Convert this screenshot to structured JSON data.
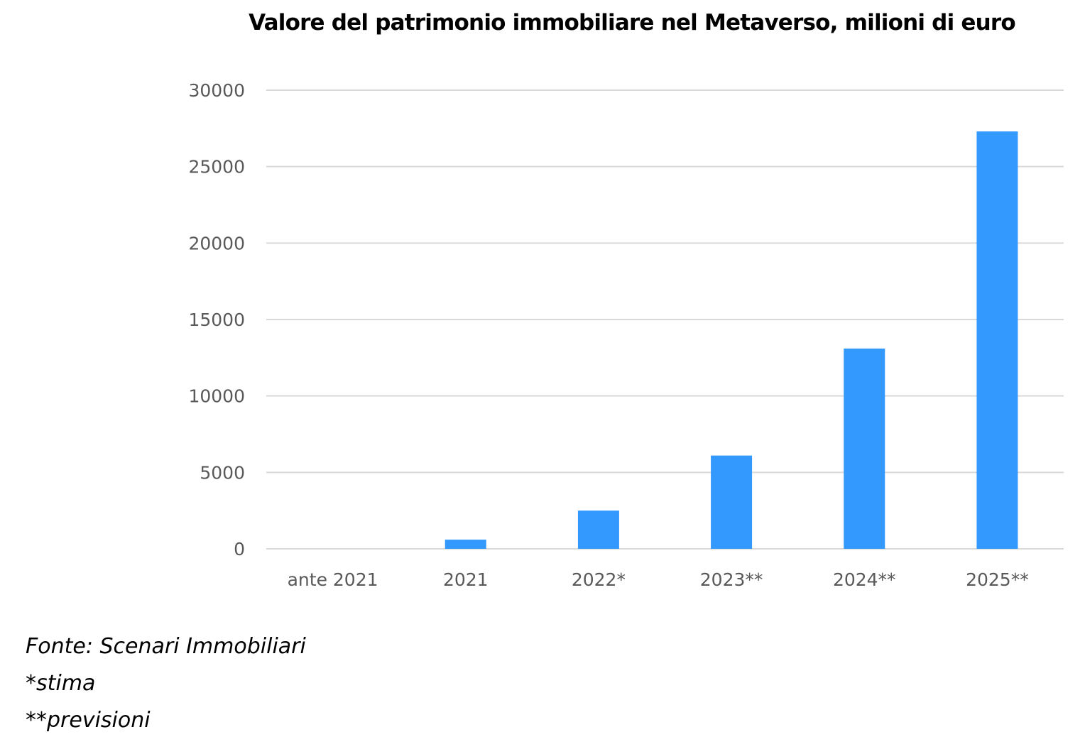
{
  "chart_data": {
    "type": "bar",
    "title": "Valore del patrimonio immobiliare nel Metaverso, milioni di euro",
    "categories": [
      "ante 2021",
      "2021",
      "2022*",
      "2023**",
      "2024**",
      "2025**"
    ],
    "values": [
      0,
      600,
      2500,
      6100,
      13100,
      27300
    ],
    "ylim": [
      0,
      30000
    ],
    "yticks": [
      0,
      5000,
      10000,
      15000,
      20000,
      25000,
      30000
    ],
    "grid": true,
    "legend": "none",
    "bar_color": "#3399ff",
    "grid_color": "#d9d9d9"
  },
  "notes": {
    "source": "Fonte: Scenari Immobiliari",
    "estimate": "*stima",
    "forecast": "**previsioni"
  }
}
